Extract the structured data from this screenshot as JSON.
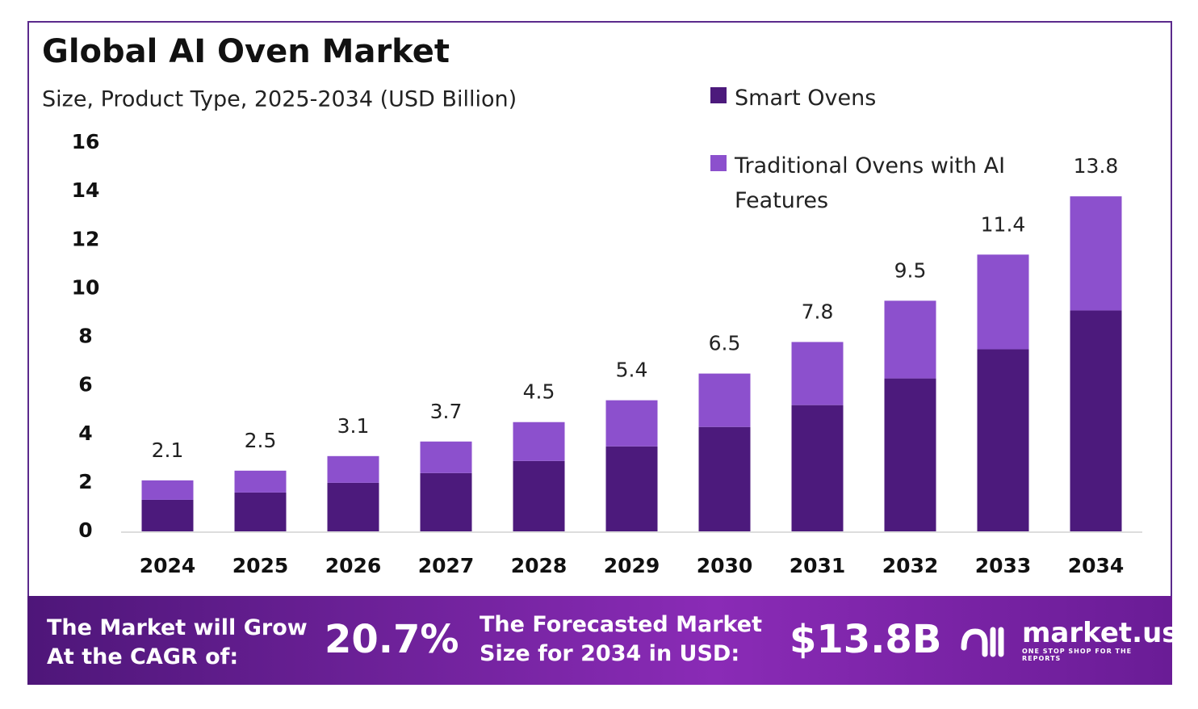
{
  "chart_data": {
    "type": "stacked_bar",
    "title": "Global AI Oven Market",
    "subtitle": "Size, Product Type, 2025-2034 (USD Billion)",
    "categories": [
      "2024",
      "2025",
      "2026",
      "2027",
      "2028",
      "2029",
      "2030",
      "2031",
      "2032",
      "2033",
      "2034"
    ],
    "series": [
      {
        "name": "Smart Ovens",
        "color": "#4c1a7c",
        "values": [
          1.3,
          1.6,
          2.0,
          2.4,
          2.9,
          3.5,
          4.3,
          5.2,
          6.3,
          7.5,
          9.1
        ]
      },
      {
        "name": "Traditional Ovens with AI Features",
        "color": "#8c50cd",
        "values": [
          0.8,
          0.9,
          1.1,
          1.3,
          1.6,
          1.9,
          2.2,
          2.6,
          3.2,
          3.9,
          4.7
        ]
      }
    ],
    "totals": [
      2.1,
      2.5,
      3.1,
      3.7,
      4.5,
      5.4,
      6.5,
      7.8,
      9.5,
      11.4,
      13.8
    ],
    "ylim": [
      0,
      16
    ],
    "yticks": [
      0,
      2,
      4,
      6,
      8,
      10,
      12,
      14,
      16
    ],
    "grid": false,
    "legend": "top-right"
  },
  "footer": {
    "cagr_text": "The Market will Grow At the CAGR of:",
    "cagr_value": "20.7%",
    "forecast_text": "The Forecasted Market Size for 2034 in USD:",
    "forecast_value": "$13.8B",
    "logo": "market.us",
    "tagline": "ONE STOP SHOP FOR THE REPORTS"
  }
}
